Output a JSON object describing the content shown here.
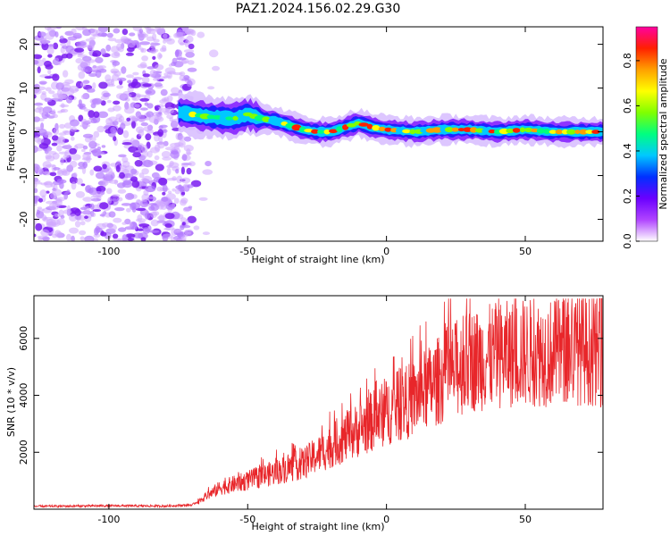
{
  "title": "PAZ1.2024.156.02.29.G30",
  "chart_data": [
    {
      "type": "heatmap",
      "xlabel": "Height of straight line (km)",
      "ylabel": "Frequency (Hz)",
      "xlim": [
        -127,
        78
      ],
      "ylim": [
        -25,
        24
      ],
      "xticks": [
        -100,
        -50,
        0,
        50
      ],
      "yticks": [
        -20,
        -10,
        0,
        10,
        20
      ],
      "colorbar": {
        "label": "Normalized spectral amplitude",
        "range": [
          0,
          0.95
        ],
        "ticks": [
          "0.0",
          "0.2",
          "0.4",
          "0.6",
          "0.8"
        ],
        "colormap": [
          "#ffffff",
          "#b044ff",
          "#6a00ff",
          "#0030ff",
          "#00c8ff",
          "#00ff80",
          "#80ff00",
          "#ffff00",
          "#ffa000",
          "#ff2000",
          "#ff00a0"
        ]
      },
      "features": {
        "noise_region_x": [
          -127,
          -70
        ],
        "ridge_points": [
          [
            -75,
            4.5
          ],
          [
            -65,
            3.5
          ],
          [
            -55,
            3.0
          ],
          [
            -50,
            4.0
          ],
          [
            -45,
            3.0
          ],
          [
            -40,
            2.5
          ],
          [
            -35,
            1.5
          ],
          [
            -30,
            0.5
          ],
          [
            -25,
            0.0
          ],
          [
            -20,
            0.0
          ],
          [
            -15,
            1.0
          ],
          [
            -10,
            2.0
          ],
          [
            -5,
            1.0
          ],
          [
            0,
            0.5
          ],
          [
            10,
            0.0
          ],
          [
            20,
            0.5
          ],
          [
            30,
            0.5
          ],
          [
            40,
            0.0
          ],
          [
            50,
            0.5
          ],
          [
            60,
            0.0
          ],
          [
            70,
            0.0
          ],
          [
            78,
            0.0
          ]
        ]
      }
    },
    {
      "type": "line",
      "xlabel": "Height of straight line (km)",
      "ylabel": "SNR (10 * v/v)",
      "xlim": [
        -127,
        78
      ],
      "ylim": [
        0,
        7500
      ],
      "xticks": [
        -100,
        -50,
        0,
        50
      ],
      "yticks": [
        2000,
        4000,
        6000
      ],
      "color": "#e8262a",
      "trend": {
        "x": [
          -127,
          -100,
          -80,
          -70,
          -65,
          -60,
          -50,
          -40,
          -30,
          -20,
          -10,
          0,
          10,
          20,
          30,
          40,
          50,
          60,
          70,
          78
        ],
        "y": [
          100,
          120,
          110,
          150,
          450,
          750,
          1000,
          1300,
          1600,
          2200,
          2800,
          3400,
          3900,
          4600,
          5200,
          5400,
          5500,
          5500,
          5600,
          5500
        ]
      },
      "peak_max": 7400
    }
  ]
}
